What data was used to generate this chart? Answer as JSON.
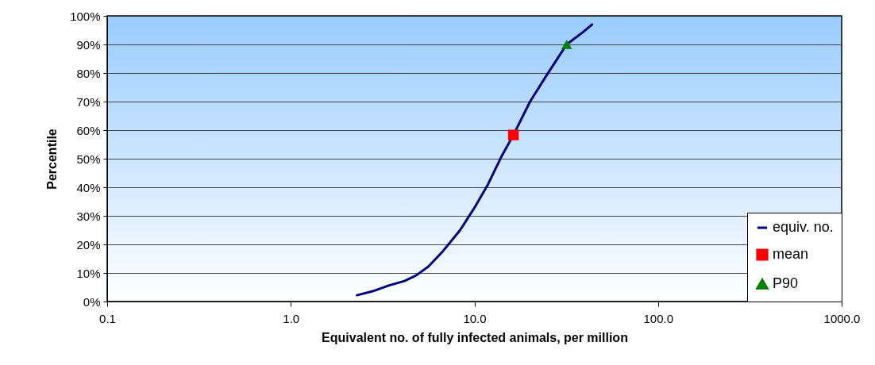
{
  "chart_data": {
    "type": "line",
    "xlabel": "Equivalent no. of fully infected animals, per million",
    "ylabel": "Percentile",
    "log": "x",
    "xlim": [
      0.1,
      1000
    ],
    "xticks": [
      0.1,
      {
        "value": 1,
        "label": "1.0"
      },
      {
        "value": 10,
        "label": "10.0"
      },
      {
        "value": 100,
        "label": "100.0"
      },
      {
        "value": 1000,
        "label": "1000.0"
      }
    ],
    "ylim": [
      0,
      100
    ],
    "yticks": [
      {
        "value": 0,
        "label": "0%"
      },
      {
        "value": 10,
        "label": "10%"
      },
      {
        "value": 20,
        "label": "20%"
      },
      {
        "value": 30,
        "label": "30%"
      },
      {
        "value": 40,
        "label": "40%"
      },
      {
        "value": 50,
        "label": "50%"
      },
      {
        "value": 60,
        "label": "60%"
      },
      {
        "value": 70,
        "label": "70%"
      },
      {
        "value": 80,
        "label": "80%"
      },
      {
        "value": 90,
        "label": "90%"
      },
      {
        "value": 100,
        "label": "100%"
      }
    ],
    "grid": "y",
    "legend": "bottom right",
    "series": [
      {
        "name": "equiv. no.",
        "color": "#000080",
        "marker": "none",
        "x": [
          2.29,
          2.79,
          3.41,
          4.16,
          4.83,
          5.61,
          6.65,
          8.36,
          10,
          11.85,
          14.0,
          16.3,
          20.1,
          25,
          31.8,
          39.2,
          43.7
        ],
        "values": [
          2.2,
          3.6,
          5.6,
          7.2,
          9.2,
          12.2,
          17.2,
          25,
          32.8,
          41,
          50.6,
          58.3,
          70,
          79.7,
          90,
          94.4,
          97
        ]
      },
      {
        "name": "mean",
        "type": "scatter",
        "color": "#ff0000",
        "marker": "square",
        "x": [
          16.3
        ],
        "values": [
          58.3
        ]
      },
      {
        "name": "P90",
        "type": "scatter",
        "color": "#008000",
        "marker": "triangle",
        "x": [
          31.8
        ],
        "values": [
          90
        ]
      }
    ]
  }
}
